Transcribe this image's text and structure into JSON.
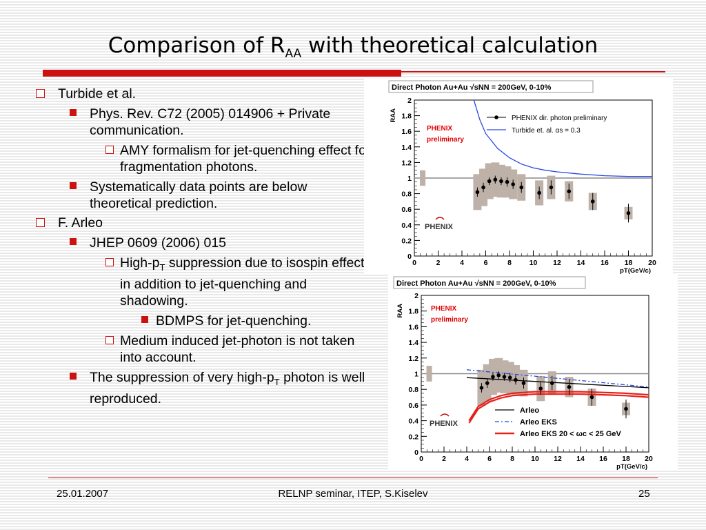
{
  "slide": {
    "title_main": "Comparison of R",
    "title_sub": "AA",
    "title_rest": " with theoretical calculation"
  },
  "bullets": {
    "b1": "Turbide et al.",
    "b1a": "Phys. Rev. C72 (2005) 014906 + Private communication.",
    "b1a1": "AMY formalism for jet-quenching effect for fragmentation photons.",
    "b1b": "Systematically data points are below theoretical prediction.",
    "b2": "F. Arleo",
    "b2a": "JHEP 0609 (2006) 015",
    "b2a1_main": "High-p",
    "b2a1_sub": "T",
    "b2a1_rest": " suppression due to isospin effect, in addition to jet-quenching and shadowing.",
    "b2a1a": "BDMPS for jet-quenching.",
    "b2a2": "Medium induced jet-photon is not taken into account.",
    "b2b_main": "The suppression of very high-p",
    "b2b_sub": "T",
    "b2b_rest": " photon is well reproduced."
  },
  "footer": {
    "date": "25.01.2007",
    "center": "RELNP seminar,  ITEP,  S.Kiselev",
    "page": "25"
  },
  "chart_data": [
    {
      "type": "scatter",
      "title": "Direct Photon Au+Au √sNN = 200GeV, 0-10%",
      "xlabel": "pT(GeV/c)",
      "ylabel": "RAA",
      "xlim": [
        0,
        20
      ],
      "ylim": [
        0,
        2
      ],
      "xticks": [
        0,
        2,
        4,
        6,
        8,
        10,
        12,
        14,
        16,
        18,
        20
      ],
      "yticks": [
        0,
        0.2,
        0.4,
        0.6,
        0.8,
        1,
        1.2,
        1.4,
        1.6,
        1.8,
        2
      ],
      "annotation": [
        "PHENIX",
        "preliminary"
      ],
      "logo": "PHENIX",
      "legend": [
        "PHENIX dir. photon preliminary",
        "Turbide et. al. αs = 0.3"
      ],
      "reference_line": 1.0,
      "points": [
        {
          "x": 5.3,
          "y": 0.82,
          "err": 0.06,
          "sys": 0.23
        },
        {
          "x": 5.8,
          "y": 0.88,
          "err": 0.06,
          "sys": 0.24
        },
        {
          "x": 6.3,
          "y": 0.96,
          "err": 0.05,
          "sys": 0.23
        },
        {
          "x": 6.8,
          "y": 0.98,
          "err": 0.05,
          "sys": 0.22
        },
        {
          "x": 7.3,
          "y": 0.96,
          "err": 0.05,
          "sys": 0.21
        },
        {
          "x": 7.8,
          "y": 0.95,
          "err": 0.06,
          "sys": 0.2
        },
        {
          "x": 8.3,
          "y": 0.92,
          "err": 0.06,
          "sys": 0.19
        },
        {
          "x": 9.0,
          "y": 0.88,
          "err": 0.07,
          "sys": 0.17
        },
        {
          "x": 10.5,
          "y": 0.81,
          "err": 0.08,
          "sys": 0.16
        },
        {
          "x": 11.5,
          "y": 0.88,
          "err": 0.09,
          "sys": 0.15
        },
        {
          "x": 13.0,
          "y": 0.83,
          "err": 0.1,
          "sys": 0.13
        },
        {
          "x": 15.0,
          "y": 0.7,
          "err": 0.11,
          "sys": 0.11
        },
        {
          "x": 18.0,
          "y": 0.55,
          "err": 0.12,
          "sys": 0.08
        }
      ],
      "series": [
        {
          "name": "Turbide et. al. αs = 0.3",
          "color": "#2a47e0",
          "style": "solid",
          "x": [
            5.0,
            5.5,
            6,
            7,
            8,
            9,
            10,
            11,
            12,
            14,
            16,
            18,
            20
          ],
          "y": [
            2.0,
            1.75,
            1.57,
            1.38,
            1.26,
            1.18,
            1.13,
            1.1,
            1.08,
            1.05,
            1.03,
            1.02,
            1.02
          ]
        }
      ],
      "gray_box": {
        "x": 0.7,
        "y": 1.0,
        "h": 0.1
      }
    },
    {
      "type": "scatter",
      "title": "Direct Photon Au+Au √sNN = 200GeV, 0-10%",
      "xlabel": "pT(GeV/c)",
      "ylabel": "RAA",
      "xlim": [
        0,
        20
      ],
      "ylim": [
        0,
        2
      ],
      "xticks": [
        0,
        2,
        4,
        6,
        8,
        10,
        12,
        14,
        16,
        18,
        20
      ],
      "yticks": [
        0,
        0.2,
        0.4,
        0.6,
        0.8,
        1,
        1.2,
        1.4,
        1.6,
        1.8,
        2
      ],
      "annotation": [
        "PHENIX",
        "preliminary"
      ],
      "logo": "PHENIX",
      "legend": [
        "Arleo",
        "Arleo EKS",
        "Arleo EKS 20 < ωc < 25 GeV"
      ],
      "reference_line": 1.0,
      "points": [
        {
          "x": 5.3,
          "y": 0.82,
          "err": 0.06,
          "sys": 0.23
        },
        {
          "x": 5.8,
          "y": 0.88,
          "err": 0.06,
          "sys": 0.24
        },
        {
          "x": 6.3,
          "y": 0.96,
          "err": 0.05,
          "sys": 0.23
        },
        {
          "x": 6.8,
          "y": 0.98,
          "err": 0.05,
          "sys": 0.22
        },
        {
          "x": 7.3,
          "y": 0.96,
          "err": 0.05,
          "sys": 0.21
        },
        {
          "x": 7.8,
          "y": 0.95,
          "err": 0.06,
          "sys": 0.2
        },
        {
          "x": 8.3,
          "y": 0.92,
          "err": 0.06,
          "sys": 0.19
        },
        {
          "x": 9.0,
          "y": 0.88,
          "err": 0.07,
          "sys": 0.17
        },
        {
          "x": 10.5,
          "y": 0.81,
          "err": 0.08,
          "sys": 0.16
        },
        {
          "x": 11.5,
          "y": 0.88,
          "err": 0.09,
          "sys": 0.15
        },
        {
          "x": 13.0,
          "y": 0.83,
          "err": 0.1,
          "sys": 0.13
        },
        {
          "x": 15.0,
          "y": 0.7,
          "err": 0.11,
          "sys": 0.11
        },
        {
          "x": 18.0,
          "y": 0.55,
          "err": 0.12,
          "sys": 0.08
        }
      ],
      "series": [
        {
          "name": "Arleo",
          "color": "#000000",
          "style": "solid",
          "x": [
            4,
            20
          ],
          "y": [
            0.95,
            0.82
          ]
        },
        {
          "name": "Arleo EKS",
          "color": "#2a47e0",
          "style": "dashdot",
          "x": [
            4,
            20
          ],
          "y": [
            1.05,
            0.83
          ]
        },
        {
          "name": "Arleo EKS 20 < ωc < 25 GeV (upper)",
          "color": "#e8201a",
          "style": "solid",
          "x": [
            4.2,
            5,
            6,
            7,
            8,
            9,
            10,
            12,
            14,
            16,
            18,
            20
          ],
          "y": [
            0.4,
            0.58,
            0.67,
            0.72,
            0.75,
            0.76,
            0.77,
            0.77,
            0.77,
            0.76,
            0.75,
            0.73
          ]
        },
        {
          "name": "Arleo EKS 20 < ωc < 25 GeV (lower)",
          "color": "#e8201a",
          "style": "solid",
          "x": [
            4.2,
            5,
            6,
            7,
            8,
            9,
            10,
            12,
            14,
            16,
            18,
            20
          ],
          "y": [
            0.37,
            0.55,
            0.64,
            0.69,
            0.72,
            0.73,
            0.74,
            0.74,
            0.74,
            0.73,
            0.72,
            0.7
          ]
        }
      ],
      "gray_box": {
        "x": 0.7,
        "y": 1.0,
        "h": 0.1
      }
    }
  ]
}
